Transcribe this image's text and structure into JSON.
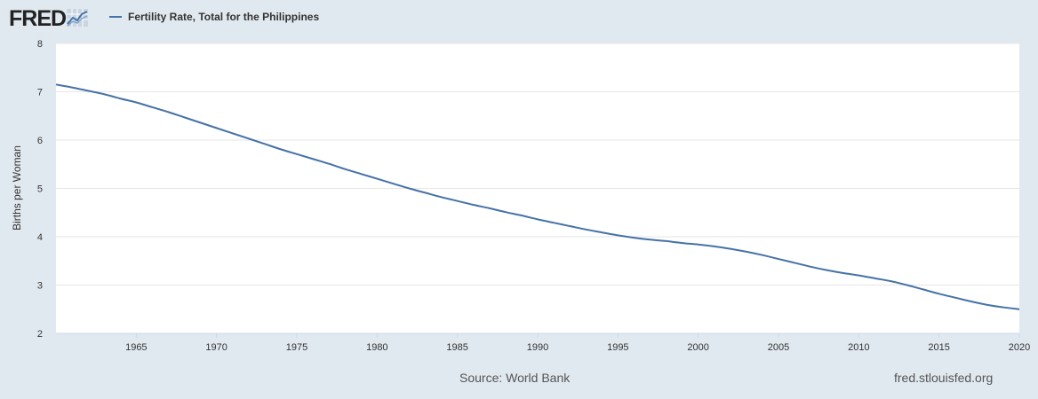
{
  "header": {
    "logo_text": "FRED",
    "legend_label": "Fertility Rate, Total for the Philippines"
  },
  "footer": {
    "source": "Source: World Bank",
    "site": "fred.stlouisfed.org"
  },
  "colors": {
    "background": "#e1e9f0",
    "plot_background": "#ffffff",
    "series": "#4572a7",
    "grid": "#e6e6e6"
  },
  "chart_data": {
    "type": "line",
    "title": "",
    "xlabel": "",
    "ylabel": "Births per Woman",
    "xlim": [
      1960,
      2020
    ],
    "ylim": [
      2,
      8
    ],
    "x_ticks": [
      1965,
      1970,
      1975,
      1980,
      1985,
      1990,
      1995,
      2000,
      2005,
      2010,
      2015,
      2020
    ],
    "y_ticks": [
      2,
      3,
      4,
      5,
      6,
      7,
      8
    ],
    "grid": true,
    "legend": "top-left",
    "series": [
      {
        "name": "Fertility Rate, Total for the Philippines",
        "x": [
          1960,
          1961,
          1962,
          1963,
          1964,
          1965,
          1966,
          1967,
          1968,
          1969,
          1970,
          1971,
          1972,
          1973,
          1974,
          1975,
          1976,
          1977,
          1978,
          1979,
          1980,
          1981,
          1982,
          1983,
          1984,
          1985,
          1986,
          1987,
          1988,
          1989,
          1990,
          1991,
          1992,
          1993,
          1994,
          1995,
          1996,
          1997,
          1998,
          1999,
          2000,
          2001,
          2002,
          2003,
          2004,
          2005,
          2006,
          2007,
          2008,
          2009,
          2010,
          2011,
          2012,
          2013,
          2014,
          2015,
          2016,
          2017,
          2018,
          2019,
          2020
        ],
        "values": [
          7.15,
          7.09,
          7.02,
          6.95,
          6.86,
          6.78,
          6.68,
          6.58,
          6.47,
          6.36,
          6.25,
          6.14,
          6.03,
          5.92,
          5.81,
          5.71,
          5.61,
          5.51,
          5.4,
          5.3,
          5.2,
          5.1,
          5.0,
          4.91,
          4.82,
          4.74,
          4.66,
          4.59,
          4.51,
          4.44,
          4.36,
          4.29,
          4.22,
          4.15,
          4.09,
          4.03,
          3.98,
          3.94,
          3.91,
          3.87,
          3.84,
          3.8,
          3.75,
          3.69,
          3.62,
          3.54,
          3.46,
          3.38,
          3.31,
          3.25,
          3.2,
          3.14,
          3.08,
          3.0,
          2.91,
          2.82,
          2.74,
          2.66,
          2.59,
          2.54,
          2.5
        ]
      }
    ]
  }
}
